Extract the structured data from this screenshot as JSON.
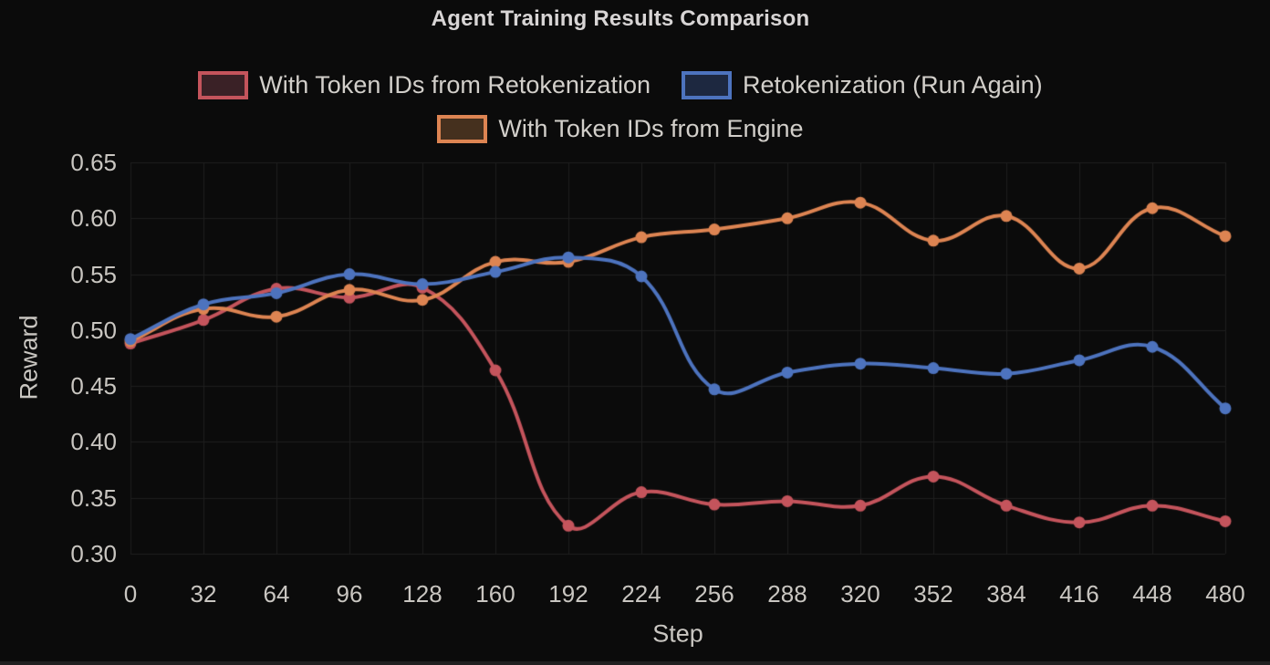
{
  "chart_data": {
    "type": "line",
    "title": "Agent Training Results Comparison",
    "xlabel": "Step",
    "ylabel": "Reward",
    "x": [
      0,
      32,
      64,
      96,
      128,
      160,
      192,
      224,
      256,
      288,
      320,
      352,
      384,
      416,
      448,
      480
    ],
    "xlim": [
      0,
      480
    ],
    "ylim": [
      0.3,
      0.65
    ],
    "y_ticks": [
      0.3,
      0.35,
      0.4,
      0.45,
      0.5,
      0.55,
      0.6,
      0.65
    ],
    "grid": true,
    "legend_position": "top",
    "line_tension": 0.4,
    "draw_order": [
      0,
      2,
      1
    ],
    "series": [
      {
        "name": "With Token IDs from Retokenization",
        "color": "#c4545c",
        "legend_fill": "#3a2126",
        "values": [
          0.488,
          0.509,
          0.537,
          0.529,
          0.538,
          0.464,
          0.325,
          0.355,
          0.344,
          0.347,
          0.343,
          0.369,
          0.343,
          0.328,
          0.343,
          0.329
        ]
      },
      {
        "name": "Retokenization (Run Again)",
        "color": "#4d73be",
        "legend_fill": "#1d2840",
        "values": [
          0.492,
          0.523,
          0.533,
          0.55,
          0.541,
          0.552,
          0.565,
          0.548,
          0.447,
          0.462,
          0.47,
          0.466,
          0.461,
          0.473,
          0.485,
          0.43
        ]
      },
      {
        "name": "With Token IDs from Engine",
        "color": "#dd8452",
        "legend_fill": "#45301e",
        "values": [
          0.49,
          0.519,
          0.512,
          0.536,
          0.527,
          0.561,
          0.561,
          0.583,
          0.59,
          0.6,
          0.614,
          0.58,
          0.602,
          0.555,
          0.609,
          0.584
        ]
      }
    ],
    "colors": {
      "background": "#0b0b0b",
      "grid": "#1e1e1e",
      "tick_text": "#c9c6c1",
      "title_text": "#d8d5d5",
      "legend_text": "#d2cfca"
    }
  }
}
